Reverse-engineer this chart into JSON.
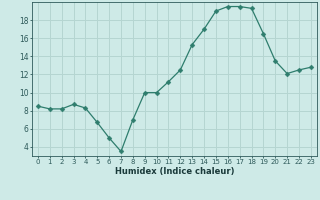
{
  "x": [
    0,
    1,
    2,
    3,
    4,
    5,
    6,
    7,
    8,
    9,
    10,
    11,
    12,
    13,
    14,
    15,
    16,
    17,
    18,
    19,
    20,
    21,
    22,
    23
  ],
  "y": [
    8.5,
    8.2,
    8.2,
    8.7,
    8.3,
    6.7,
    5.0,
    3.5,
    7.0,
    10.0,
    10.0,
    11.2,
    12.5,
    15.3,
    17.0,
    19.0,
    19.5,
    19.5,
    19.3,
    16.5,
    13.5,
    12.1,
    12.5,
    12.8
  ],
  "xlabel": "Humidex (Indice chaleur)",
  "xlim": [
    -0.5,
    23.5
  ],
  "ylim": [
    3.0,
    20.0
  ],
  "yticks": [
    4,
    6,
    8,
    10,
    12,
    14,
    16,
    18
  ],
  "xticks": [
    0,
    1,
    2,
    3,
    4,
    5,
    6,
    7,
    8,
    9,
    10,
    11,
    12,
    13,
    14,
    15,
    16,
    17,
    18,
    19,
    20,
    21,
    22,
    23
  ],
  "line_color": "#2e7d6d",
  "bg_color": "#ceeae7",
  "grid_color": "#b5d5d1",
  "tick_color": "#2e5a5a",
  "xlabel_color": "#1a3a3a",
  "tick_fontsize": 5.0,
  "xlabel_fontsize": 6.0
}
